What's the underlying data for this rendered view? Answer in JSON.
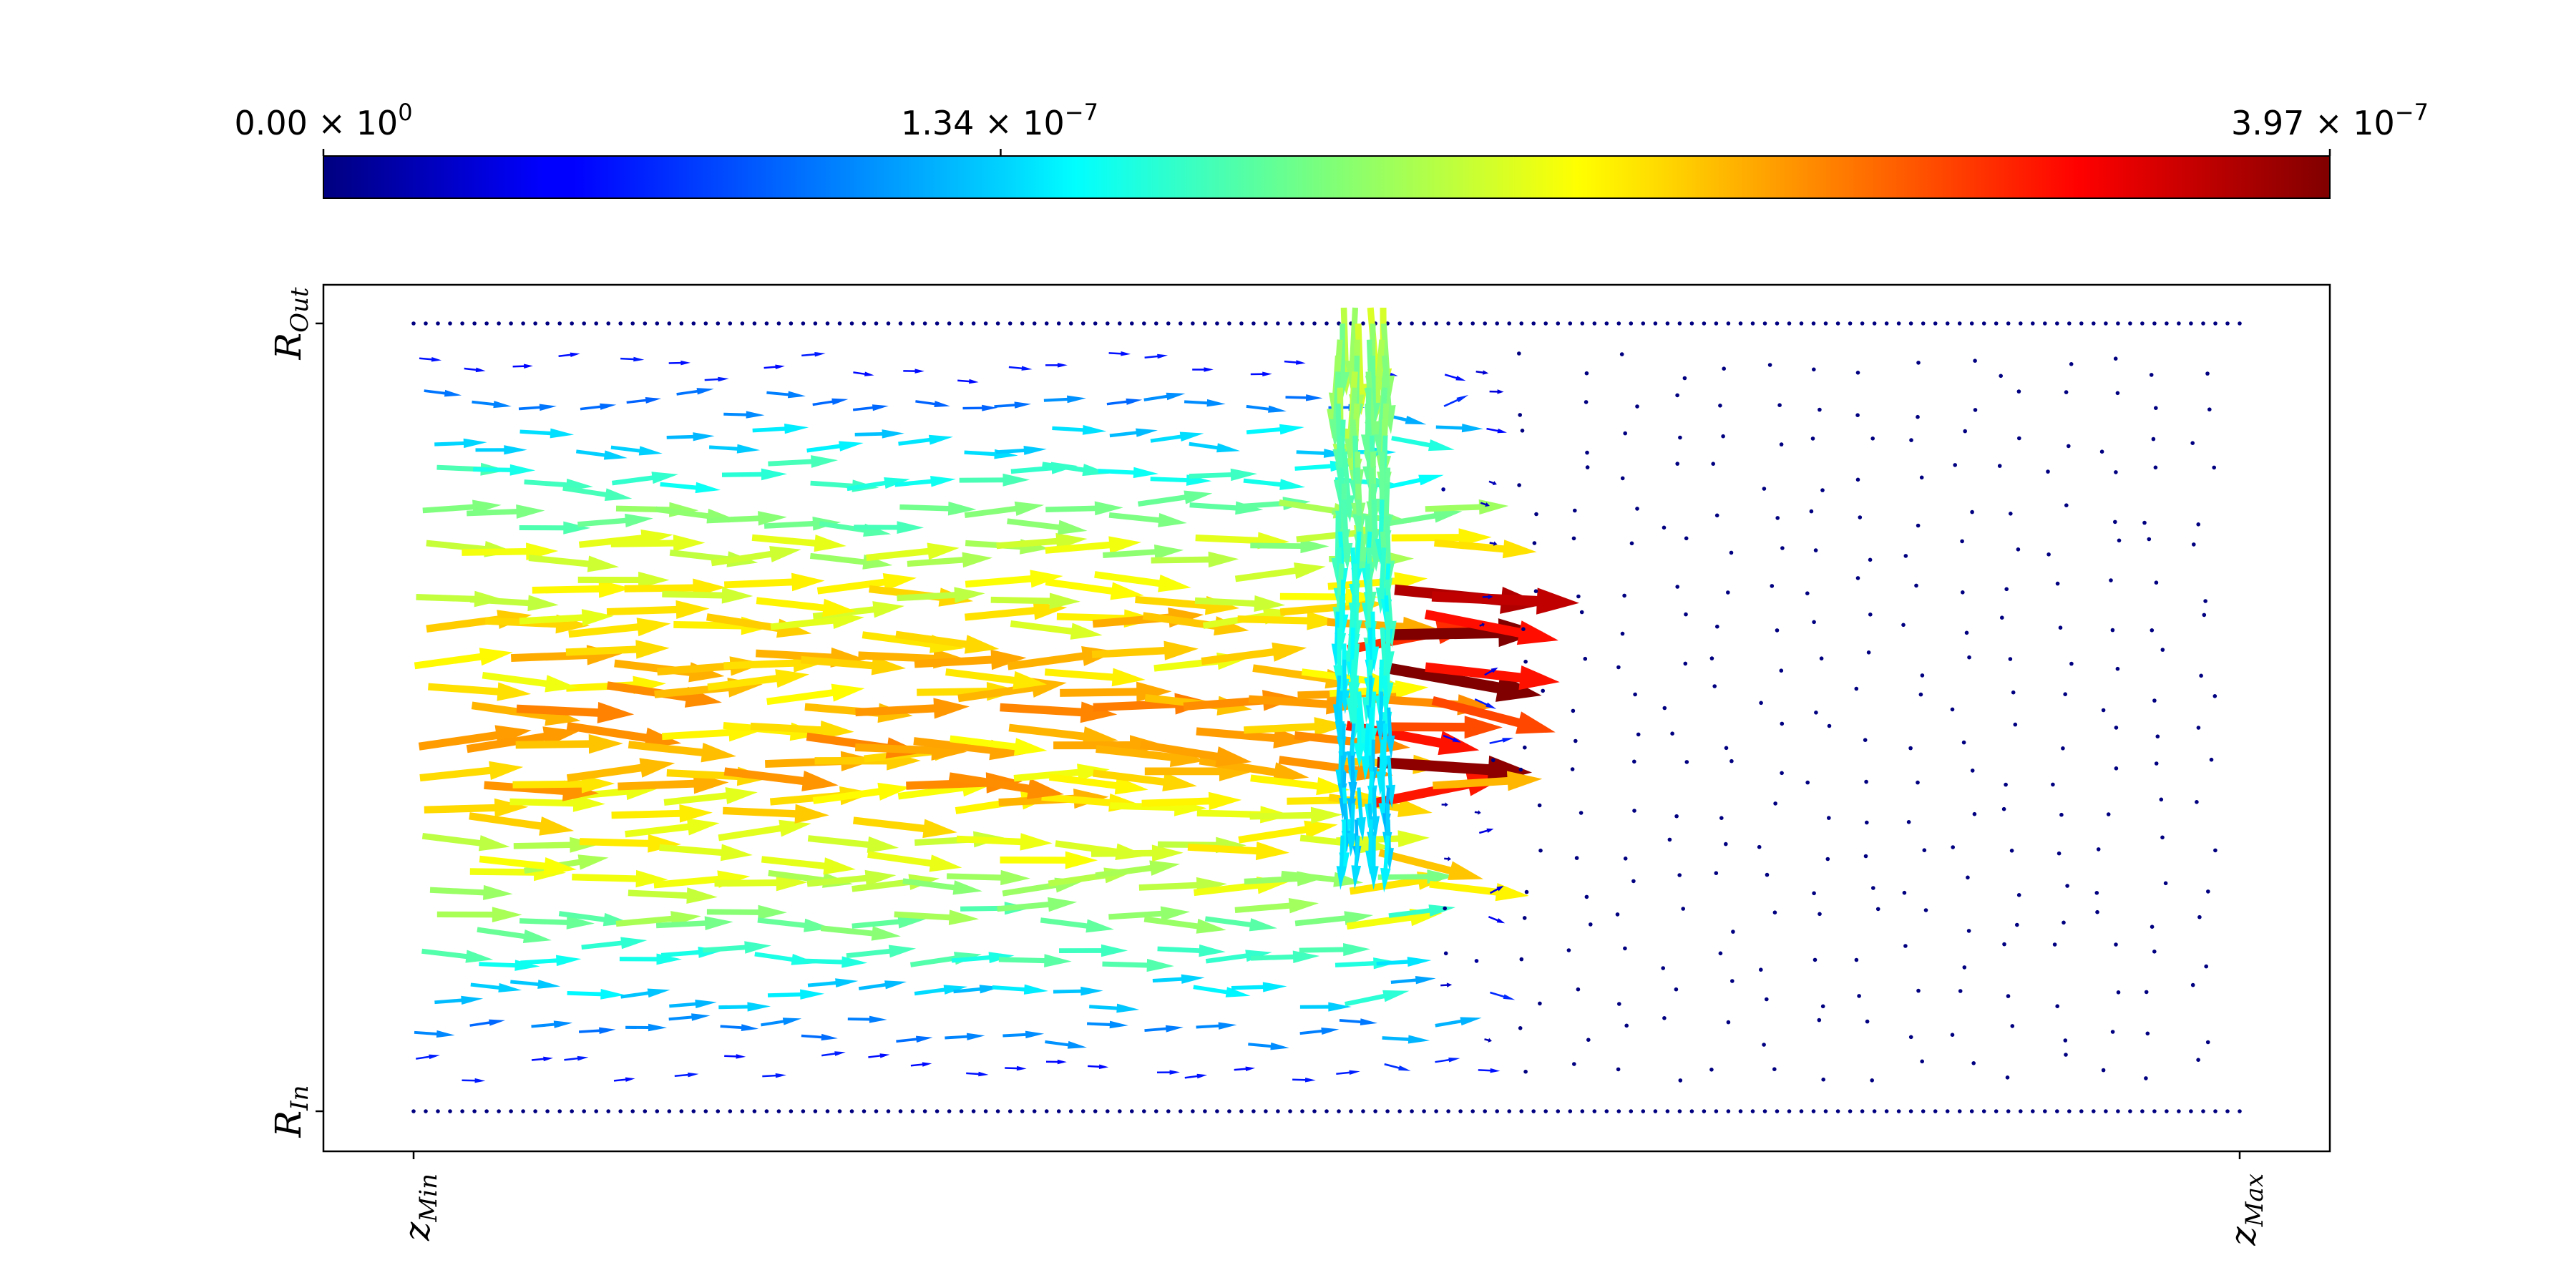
{
  "chart_data": {
    "type": "quiver",
    "title": "",
    "colorbar": {
      "colormap": "jet",
      "min": 0,
      "max": 3.97e-07,
      "orientation": "horizontal",
      "placement": "top",
      "ticks": [
        {
          "value": 0,
          "mantissa": "0.00",
          "exponent": "0"
        },
        {
          "value": 1.34e-07,
          "mantissa": "1.34",
          "exponent": "−7"
        },
        {
          "value": 3.97e-07,
          "mantissa": "3.97",
          "exponent": "−7"
        }
      ]
    },
    "x_axis": {
      "ticks": [
        {
          "base": "z",
          "sub": "Min",
          "value": 0
        },
        {
          "base": "z",
          "sub": "Max",
          "value": 1
        }
      ]
    },
    "y_axis": {
      "ticks": [
        {
          "base": "R",
          "sub": "In",
          "value": 0
        },
        {
          "base": "R",
          "sub": "Out",
          "value": 1
        }
      ]
    },
    "grid": false,
    "field": {
      "boundary_rows": [
        0,
        1
      ],
      "interior_rows": 20,
      "interior_cols": 38,
      "peak_speed": 2.8e-07,
      "injection_channel": {
        "z": 0.52,
        "r_top": 1.02,
        "r_bottom": 0.35,
        "speed": 2.25e-07
      },
      "front_z": 0.53,
      "hotspot_speed": 3.97e-07
    }
  }
}
